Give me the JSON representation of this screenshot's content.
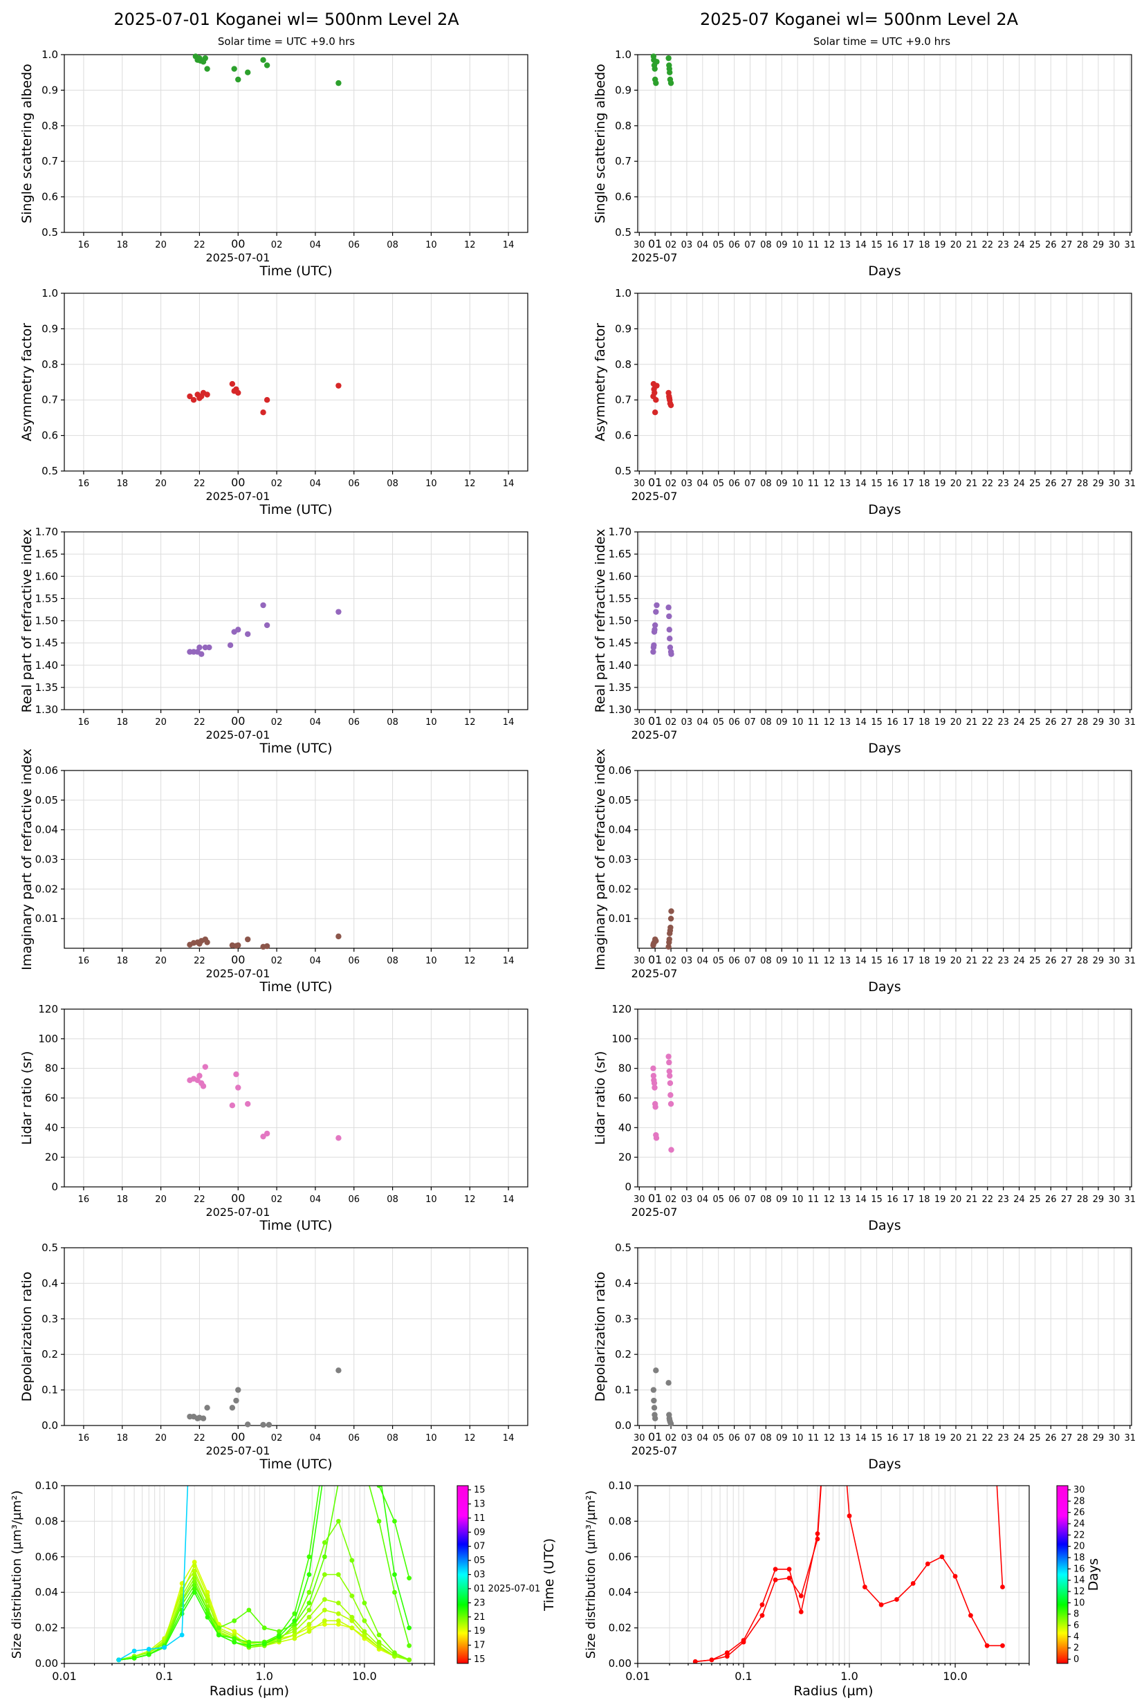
{
  "header": {
    "left_title": "2025-07-01  Koganei  wl= 500nm  Level 2A",
    "right_title": "2025-07  Koganei  wl= 500nm  Level 2A",
    "left_subtitle": "Solar time = UTC +9.0 hrs",
    "right_subtitle": "Solar time = UTC +9.0 hrs"
  },
  "axes_common": {
    "daily_xlabel": "Time (UTC)",
    "daily_date_label": "2025-07-01",
    "daily_ticks": [
      "16",
      "18",
      "20",
      "22",
      "00",
      "02",
      "04",
      "06",
      "08",
      "10",
      "12",
      "14"
    ],
    "monthly_xlabel": "Days",
    "monthly_date_label": "2025-07",
    "monthly_ticks": [
      "30",
      "01",
      "02",
      "03",
      "04",
      "05",
      "06",
      "07",
      "08",
      "09",
      "10",
      "11",
      "12",
      "13",
      "14",
      "15",
      "16",
      "17",
      "18",
      "19",
      "20",
      "21",
      "22",
      "23",
      "24",
      "25",
      "26",
      "27",
      "28",
      "29",
      "30",
      "31"
    ]
  },
  "chart_data": [
    {
      "id": "ssa",
      "type": "scatter",
      "ylabel": "Single scattering albedo",
      "color": "#2ca02c",
      "ylim": [
        0.5,
        1.0
      ],
      "yticks": [
        "0.5",
        "0.6",
        "0.7",
        "0.8",
        "0.9",
        "1.0"
      ],
      "daily": {
        "x": [
          21.8,
          21.9,
          22.0,
          22.05,
          22.2,
          22.3,
          22.4,
          23.8,
          24.0,
          24.5,
          25.3,
          25.5,
          29.2
        ],
        "y": [
          0.995,
          0.985,
          0.99,
          0.983,
          0.98,
          0.99,
          0.96,
          0.96,
          0.93,
          0.95,
          0.985,
          0.97,
          0.92
        ]
      },
      "monthly": {
        "x": [
          0.9,
          0.92,
          0.95,
          0.98,
          1.0,
          1.05,
          1.1,
          1.85,
          1.88,
          1.9,
          1.92,
          1.95,
          2.0
        ],
        "y": [
          0.995,
          0.985,
          0.97,
          0.96,
          0.93,
          0.92,
          0.98,
          0.99,
          0.97,
          0.96,
          0.95,
          0.93,
          0.92
        ]
      }
    },
    {
      "id": "asym",
      "type": "scatter",
      "ylabel": "Asymmetry factor",
      "color": "#d62728",
      "ylim": [
        0.5,
        1.0
      ],
      "yticks": [
        "0.5",
        "0.6",
        "0.7",
        "0.8",
        "0.9",
        "1.0"
      ],
      "daily": {
        "x": [
          21.5,
          21.7,
          21.9,
          22.0,
          22.2,
          22.4,
          23.7,
          23.9,
          24.0,
          25.3,
          25.5,
          29.2
        ],
        "y": [
          0.71,
          0.7,
          0.715,
          0.705,
          0.72,
          0.715,
          0.745,
          0.73,
          0.72,
          0.665,
          0.7,
          0.74
        ],
        "extra_x": [
          22.1,
          23.8
        ],
        "extra_y": [
          0.71,
          0.725
        ]
      },
      "monthly": {
        "x": [
          0.88,
          0.9,
          0.93,
          0.96,
          1.0,
          1.05,
          1.1,
          1.85,
          1.88,
          1.9,
          1.92,
          1.95,
          2.0
        ],
        "y": [
          0.71,
          0.745,
          0.73,
          0.72,
          0.665,
          0.7,
          0.74,
          0.72,
          0.71,
          0.705,
          0.7,
          0.69,
          0.685
        ]
      }
    },
    {
      "id": "rri",
      "type": "scatter",
      "ylabel": "Real part of refractive index",
      "color": "#9467bd",
      "ylim": [
        1.3,
        1.7
      ],
      "yticks": [
        "1.30",
        "1.35",
        "1.40",
        "1.45",
        "1.50",
        "1.55",
        "1.60",
        "1.65",
        "1.70"
      ],
      "daily": {
        "x": [
          21.5,
          21.7,
          21.9,
          22.0,
          22.1,
          22.3,
          22.5,
          23.6,
          23.8,
          24.0,
          24.5,
          25.3,
          25.5,
          29.2
        ],
        "y": [
          1.43,
          1.43,
          1.43,
          1.44,
          1.425,
          1.44,
          1.44,
          1.445,
          1.475,
          1.48,
          1.47,
          1.535,
          1.49,
          1.52
        ]
      },
      "monthly": {
        "x": [
          0.88,
          0.9,
          0.92,
          0.95,
          0.97,
          1.0,
          1.05,
          1.1,
          1.85,
          1.88,
          1.9,
          1.92,
          1.95,
          2.0,
          2.02
        ],
        "y": [
          1.43,
          1.44,
          1.445,
          1.475,
          1.48,
          1.49,
          1.52,
          1.535,
          1.53,
          1.51,
          1.48,
          1.46,
          1.44,
          1.43,
          1.425
        ]
      }
    },
    {
      "id": "iri",
      "type": "scatter",
      "ylabel": "Imaginary part of refractive index",
      "color": "#8c564b",
      "ylim": [
        0.0,
        0.06
      ],
      "yticks": [
        "0.01",
        "0.02",
        "0.03",
        "0.04",
        "0.05",
        "0.06"
      ],
      "daily": {
        "x": [
          21.5,
          21.7,
          21.9,
          22.0,
          22.1,
          22.3,
          22.4,
          23.7,
          23.9,
          24.0,
          24.5,
          25.3,
          25.5,
          29.2
        ],
        "y": [
          0.0012,
          0.0018,
          0.002,
          0.0015,
          0.0025,
          0.003,
          0.002,
          0.001,
          0.0008,
          0.001,
          0.003,
          0.0005,
          0.0007,
          0.004
        ]
      },
      "monthly": {
        "x": [
          0.88,
          0.9,
          0.95,
          1.0,
          1.05,
          1.85,
          1.88,
          1.9,
          1.92,
          1.95,
          1.97,
          2.0,
          2.02
        ],
        "y": [
          0.001,
          0.0015,
          0.002,
          0.003,
          0.0025,
          0.0005,
          0.002,
          0.003,
          0.005,
          0.006,
          0.007,
          0.01,
          0.0125
        ]
      }
    },
    {
      "id": "lidar",
      "type": "scatter",
      "ylabel": "Lidar ratio (sr)",
      "color": "#e377c2",
      "ylim": [
        0,
        120
      ],
      "yticks": [
        "0",
        "20",
        "40",
        "60",
        "80",
        "100",
        "120"
      ],
      "daily": {
        "x": [
          21.5,
          21.7,
          21.9,
          22.0,
          22.1,
          22.2,
          22.3,
          23.7,
          23.9,
          24.0,
          24.5,
          25.3,
          25.5,
          29.2
        ],
        "y": [
          72,
          73,
          72,
          75,
          70,
          68,
          81,
          55,
          76,
          67,
          56,
          34,
          36,
          33
        ]
      },
      "monthly": {
        "x": [
          0.88,
          0.9,
          0.92,
          0.95,
          0.97,
          1.0,
          1.02,
          1.05,
          1.08,
          1.85,
          1.88,
          1.9,
          1.92,
          1.95,
          1.97,
          2.0,
          2.02
        ],
        "y": [
          80,
          75,
          72,
          70,
          67,
          56,
          54,
          35,
          33,
          88,
          84,
          78,
          75,
          70,
          62,
          56,
          25
        ]
      }
    },
    {
      "id": "depol",
      "type": "scatter",
      "ylabel": "Depolarization ratio",
      "color": "#7f7f7f",
      "ylim": [
        0,
        0.5
      ],
      "yticks": [
        "0.0",
        "0.1",
        "0.2",
        "0.3",
        "0.4",
        "0.5"
      ],
      "daily": {
        "x": [
          21.5,
          21.7,
          21.9,
          22.0,
          22.2,
          22.4,
          23.7,
          23.9,
          24.0,
          24.5,
          25.3,
          25.6,
          29.2
        ],
        "y": [
          0.025,
          0.025,
          0.02,
          0.022,
          0.02,
          0.05,
          0.05,
          0.07,
          0.1,
          0.003,
          0.002,
          0.002,
          0.155
        ]
      },
      "monthly": {
        "x": [
          0.9,
          0.92,
          0.95,
          0.97,
          1.0,
          1.05,
          1.85,
          1.88,
          1.9,
          1.92,
          1.95,
          2.0
        ],
        "y": [
          0.1,
          0.07,
          0.05,
          0.03,
          0.02,
          0.155,
          0.12,
          0.03,
          0.02,
          0.015,
          0.01,
          0.005
        ]
      }
    },
    {
      "id": "psd",
      "type": "line",
      "ylabel": "Size distribution (µm³/µm²)",
      "xlabel": "Radius (µm)",
      "xlim": [
        0.01,
        50
      ],
      "ylim": [
        0,
        0.1
      ],
      "xticks": [
        "0.01",
        "0.1",
        "1.0",
        "10.0"
      ],
      "yticks": [
        "0.00",
        "0.02",
        "0.04",
        "0.06",
        "0.08",
        "0.10"
      ],
      "radius": [
        0.035,
        0.05,
        0.07,
        0.1,
        0.15,
        0.2,
        0.27,
        0.35,
        0.5,
        0.7,
        1.0,
        1.4,
        2.0,
        2.8,
        4.0,
        5.5,
        7.5,
        10,
        14,
        20,
        28
      ],
      "daily_series": [
        {
          "color": "#d8ff00",
          "values": [
            0.002,
            0.004,
            0.006,
            0.012,
            0.045,
            0.057,
            0.04,
            0.022,
            0.018,
            0.012,
            0.012,
            0.014,
            0.016,
            0.02,
            0.022,
            0.022,
            0.02,
            0.014,
            0.008,
            0.004,
            0.002
          ]
        },
        {
          "color": "#c4ff00",
          "values": [
            0.002,
            0.004,
            0.007,
            0.014,
            0.04,
            0.055,
            0.038,
            0.02,
            0.016,
            0.01,
            0.01,
            0.012,
            0.014,
            0.018,
            0.024,
            0.024,
            0.02,
            0.015,
            0.009,
            0.004,
            0.002
          ]
        },
        {
          "color": "#b6ff00",
          "values": [
            0.002,
            0.004,
            0.006,
            0.013,
            0.042,
            0.052,
            0.036,
            0.018,
            0.014,
            0.01,
            0.011,
            0.013,
            0.016,
            0.022,
            0.03,
            0.028,
            0.024,
            0.016,
            0.009,
            0.004,
            0.002
          ]
        },
        {
          "color": "#a2ff00",
          "values": [
            0.002,
            0.004,
            0.006,
            0.012,
            0.038,
            0.05,
            0.035,
            0.019,
            0.015,
            0.011,
            0.012,
            0.015,
            0.018,
            0.026,
            0.036,
            0.034,
            0.026,
            0.018,
            0.01,
            0.004,
            0.002
          ]
        },
        {
          "color": "#8cff00",
          "values": [
            0.002,
            0.004,
            0.006,
            0.011,
            0.036,
            0.048,
            0.032,
            0.017,
            0.014,
            0.01,
            0.011,
            0.014,
            0.02,
            0.03,
            0.05,
            0.05,
            0.038,
            0.024,
            0.012,
            0.005,
            0.002
          ]
        },
        {
          "color": "#78ff00",
          "values": [
            0.002,
            0.003,
            0.005,
            0.01,
            0.035,
            0.046,
            0.03,
            0.016,
            0.012,
            0.009,
            0.01,
            0.013,
            0.022,
            0.04,
            0.068,
            0.08,
            0.058,
            0.034,
            0.016,
            0.006,
            0.002
          ]
        },
        {
          "color": "#5cff00",
          "values": [
            0.002,
            0.003,
            0.005,
            0.01,
            0.033,
            0.044,
            0.03,
            0.02,
            0.024,
            0.03,
            0.02,
            0.018,
            0.022,
            0.034,
            0.06,
            0.102,
            0.12,
            0.11,
            0.08,
            0.04,
            0.01
          ]
        },
        {
          "color": "#44ff00",
          "values": [
            0.002,
            0.003,
            0.005,
            0.01,
            0.03,
            0.042,
            0.028,
            0.016,
            0.014,
            0.012,
            0.012,
            0.016,
            0.028,
            0.06,
            0.12,
            0.15,
            0.14,
            0.12,
            0.1,
            0.08,
            0.048
          ]
        },
        {
          "color": "#2cff00",
          "values": [
            0.002,
            0.003,
            0.005,
            0.009,
            0.028,
            0.04,
            0.026,
            0.016,
            0.012,
            0.01,
            0.011,
            0.015,
            0.024,
            0.05,
            0.11,
            0.16,
            0.16,
            0.13,
            0.11,
            0.05,
            0.02
          ]
        },
        {
          "color": "#00d6ff",
          "values": [
            0.002,
            0.007,
            0.008,
            0.009,
            0.016,
            0.2,
            0.2,
            0.2,
            0.2,
            0.2,
            0.2,
            0.2,
            0.2,
            0.2,
            0.2,
            0.2,
            0.2,
            0.2,
            0.2,
            0.2,
            0.2
          ]
        }
      ],
      "monthly_series": [
        {
          "color": "#ff0000",
          "values": [
            0.001,
            0.002,
            0.004,
            0.012,
            0.027,
            0.047,
            0.048,
            0.038,
            0.07,
            0.2,
            0.2,
            0.2,
            0.2,
            0.2,
            0.2,
            0.2,
            0.2,
            0.2,
            0.2,
            0.2,
            0.043
          ]
        },
        {
          "color": "#ff0000",
          "values": [
            0.001,
            0.002,
            0.006,
            0.013,
            0.033,
            0.053,
            0.053,
            0.029,
            0.073,
            0.2,
            0.083,
            0.043,
            0.033,
            0.036,
            0.045,
            0.056,
            0.06,
            0.049,
            0.027,
            0.01,
            0.01
          ]
        }
      ],
      "colorbar_left": {
        "labels": [
          "15",
          "13",
          "11",
          "09",
          "07",
          "05",
          "03",
          "01 2025-07-01",
          "23",
          "21",
          "19",
          "17",
          "15"
        ],
        "ylabel": "Time (UTC)"
      },
      "colorbar_right": {
        "labels": [
          "30",
          "28",
          "26",
          "24",
          "22",
          "20",
          "18",
          "16",
          "14",
          "12",
          "10",
          "8",
          "6",
          "4",
          "2",
          "0"
        ],
        "ylabel": "Days"
      }
    }
  ]
}
